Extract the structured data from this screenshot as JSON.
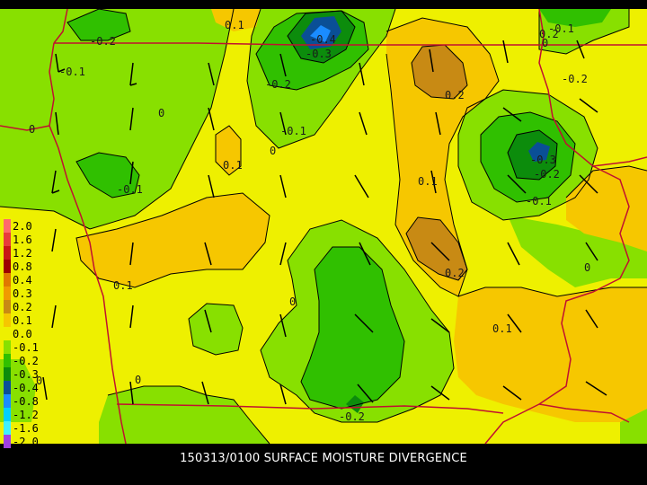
{
  "caption": "150313/0100 SURFACE MOISTURE DIVERGENCE",
  "legend": [
    {
      "label": "2.0",
      "color": "#ff6a6a"
    },
    {
      "label": "1.6",
      "color": "#e83c3c"
    },
    {
      "label": "1.2",
      "color": "#c81616"
    },
    {
      "label": "0.8",
      "color": "#9c0000"
    },
    {
      "label": "0.4",
      "color": "#e07800"
    },
    {
      "label": "0.3",
      "color": "#f09a00"
    },
    {
      "label": "0.2",
      "color": "#c88a14"
    },
    {
      "label": "0.1",
      "color": "#f6c700"
    },
    {
      "label": "0.0",
      "color": "#eef000"
    },
    {
      "label": "-0.1",
      "color": "#88e000"
    },
    {
      "label": "-0.2",
      "color": "#30c000"
    },
    {
      "label": "-0.3",
      "color": "#0c8c0c"
    },
    {
      "label": "-0.4",
      "color": "#0a4f96"
    },
    {
      "label": "-0.8",
      "color": "#1a8cff"
    },
    {
      "label": "-1.2",
      "color": "#00d0ff"
    },
    {
      "label": "-1.6",
      "color": "#40f0ff"
    },
    {
      "label": "-2.0",
      "color": "#a040e0"
    }
  ],
  "contour_labels": [
    "0.1",
    "-0.2",
    "-0.1",
    "-0.4",
    "-0.3",
    "-0.2",
    "0.2",
    "-0.1",
    "0",
    "0.1",
    "0",
    "-0.1",
    "0",
    "0.1",
    "-0.3",
    "-0.2",
    "-0.1",
    "0.2",
    "-0.2",
    "0",
    "0.1",
    "0",
    "0.1",
    "0",
    "-0.2",
    "-0.1",
    "0",
    "0.2",
    "0"
  ],
  "colors": {
    "green_light": "#88e000",
    "green": "#30c000",
    "green_dark": "#0c8c0c",
    "yellow": "#eef000",
    "orange_light": "#f6c700",
    "brown": "#c88a14",
    "blue_dark": "#0a4f96",
    "blue": "#1a8cff",
    "border": "#c01030",
    "contour": "#000000"
  }
}
